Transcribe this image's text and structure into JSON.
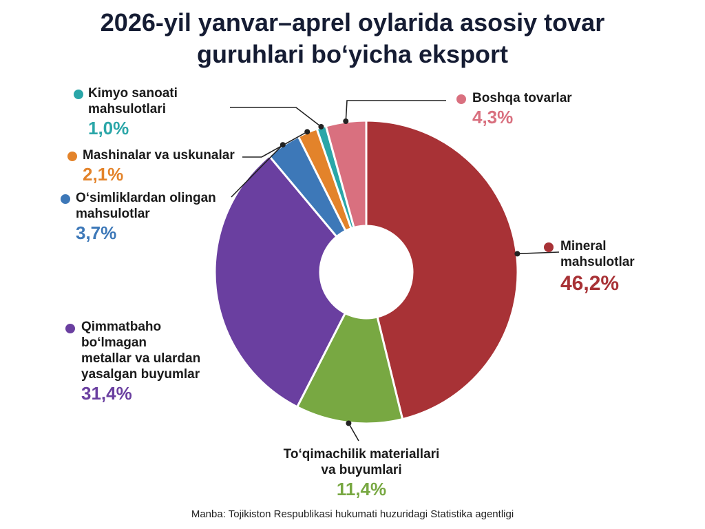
{
  "title": {
    "line1": "2026-yil yanvar–aprel oylarida asosiy tovar",
    "line2": "guruhlari bo‘yicha eksport"
  },
  "source": "Manba: Tojikiston Respublikasi hukumati huzuridagi Statistika agentligi",
  "chart_data": {
    "type": "pie",
    "variant": "donut",
    "title": "2026-yil yanvar–aprel oylarida asosiy tovar guruhlari bo‘yicha eksport",
    "slices": [
      {
        "name": "Mineral mahsulotlar",
        "value": 46.2,
        "label": "46,2%",
        "color": "#a83236"
      },
      {
        "name": "To‘qimachilik materiallari va buyumlari",
        "value": 11.4,
        "label": "11,4%",
        "color": "#78a842"
      },
      {
        "name": "Qimmatbaho bo‘lmagan metallar va ulardan yasalgan buyumlar",
        "value": 31.4,
        "label": "31,4%",
        "color": "#6a3fa0"
      },
      {
        "name": "O‘simliklardan olingan mahsulotlar",
        "value": 3.7,
        "label": "3,7%",
        "color": "#3d78b8"
      },
      {
        "name": "Mashinalar va uskunalar",
        "value": 2.1,
        "label": "2,1%",
        "color": "#e3832a"
      },
      {
        "name": "Kimyo sanoati mahsulotlari",
        "value": 1.0,
        "label": "1,0%",
        "color": "#2aa6a8"
      },
      {
        "name": "Boshqa tovarlar",
        "value": 4.3,
        "label": "4,3%",
        "color": "#d9707f"
      }
    ]
  },
  "labels": {
    "mineral": {
      "line1": "Mineral",
      "line2": "mahsulotlar",
      "pct": "46,2%"
    },
    "textile": {
      "line1": "To‘qimachilik materiallari",
      "line2": "va buyumlari",
      "pct": "11,4%"
    },
    "metals": {
      "line1": "Qimmatbaho",
      "line2": "bo‘lmagan",
      "line3": "metallar va ulardan",
      "line4": "yasalgan buyumlar",
      "pct": "31,4%"
    },
    "plants": {
      "line1": "O‘simliklardan olingan",
      "line2": "mahsulotlar",
      "pct": "3,7%"
    },
    "machines": {
      "line1": "Mashinalar va uskunalar",
      "pct": "2,1%"
    },
    "chemical": {
      "line1": "Kimyo sanoati",
      "line2": "mahsulotlari",
      "pct": "1,0%"
    },
    "other": {
      "line1": "Boshqa tovarlar",
      "pct": "4,3%"
    }
  }
}
